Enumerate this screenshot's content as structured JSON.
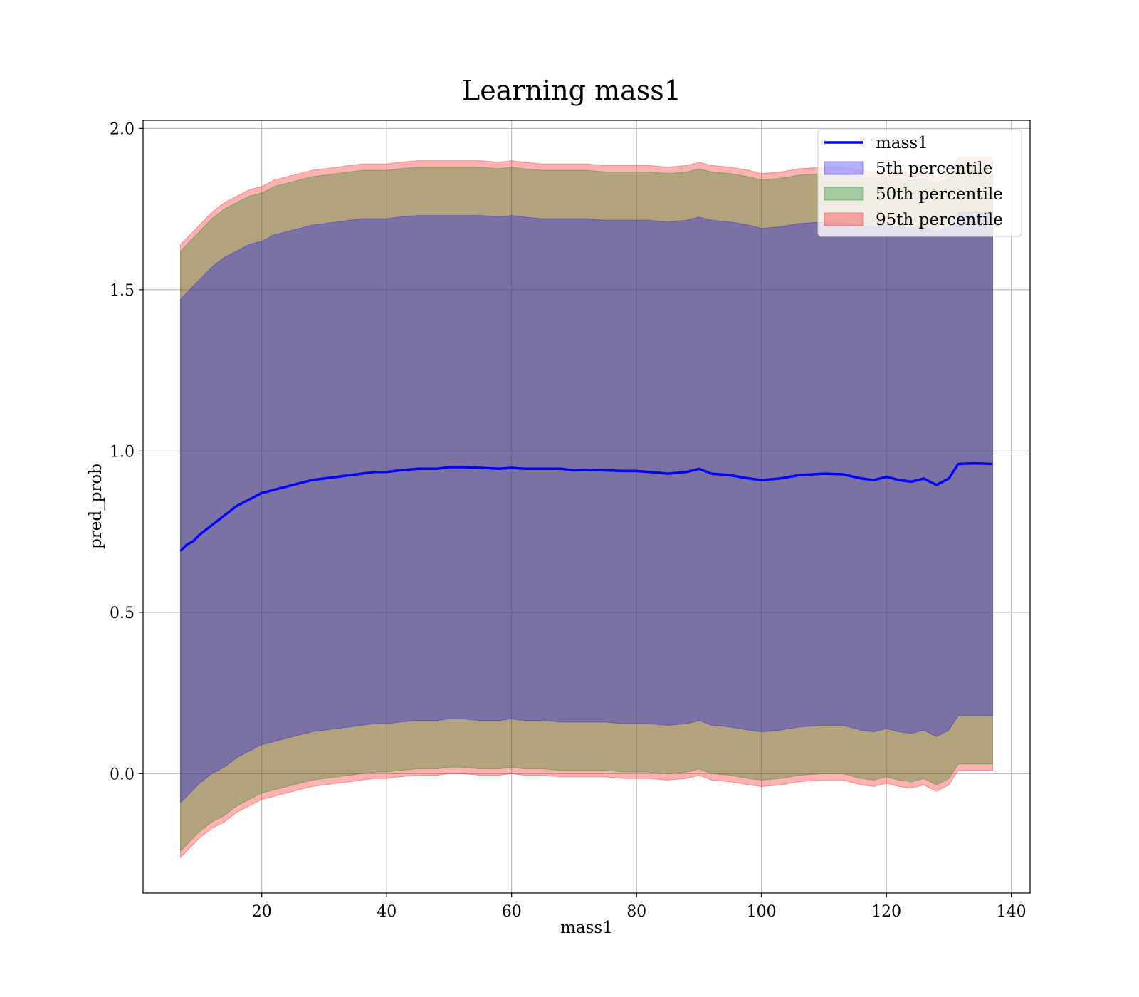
{
  "chart_data": {
    "type": "line",
    "title": "Learning mass1",
    "xlabel": "mass1",
    "ylabel": "pred_prob",
    "xlim": [
      1,
      143
    ],
    "ylim": [
      -0.37,
      2.025
    ],
    "xticks": [
      20,
      40,
      60,
      80,
      100,
      120,
      140
    ],
    "yticks": [
      0.0,
      0.5,
      1.0,
      1.5,
      2.0
    ],
    "grid": true,
    "legend_position": "top-right",
    "legend": [
      "mass1",
      "5th percentile",
      "50th percentile",
      "95th percentile"
    ],
    "colors": {
      "line": "#0000ff",
      "band_5": "#0000ff",
      "band_50": "#008000",
      "band_95": "#ff0000"
    },
    "x": [
      7,
      8,
      9,
      10,
      12,
      14,
      16,
      18,
      20,
      22,
      24,
      26,
      28,
      30,
      32,
      34,
      36,
      38,
      40,
      42,
      45,
      48,
      50,
      52,
      55,
      58,
      60,
      62,
      65,
      68,
      70,
      72,
      75,
      78,
      80,
      82,
      85,
      88,
      90,
      92,
      95,
      98,
      100,
      103,
      106,
      110,
      113,
      116,
      118,
      120,
      122,
      124,
      126,
      128,
      130,
      131.5,
      134,
      137
    ],
    "series": [
      {
        "name": "mass1",
        "kind": "line",
        "values": [
          0.69,
          0.71,
          0.72,
          0.74,
          0.77,
          0.8,
          0.83,
          0.85,
          0.87,
          0.88,
          0.89,
          0.9,
          0.91,
          0.915,
          0.92,
          0.925,
          0.93,
          0.935,
          0.935,
          0.94,
          0.945,
          0.945,
          0.95,
          0.95,
          0.948,
          0.945,
          0.948,
          0.945,
          0.945,
          0.945,
          0.94,
          0.942,
          0.94,
          0.938,
          0.938,
          0.935,
          0.93,
          0.935,
          0.945,
          0.93,
          0.925,
          0.915,
          0.91,
          0.915,
          0.925,
          0.93,
          0.928,
          0.915,
          0.91,
          0.92,
          0.91,
          0.905,
          0.915,
          0.895,
          0.915,
          0.96,
          0.962,
          0.96
        ]
      },
      {
        "name": "5th percentile",
        "kind": "band",
        "upper": [
          1.47,
          1.49,
          1.51,
          1.53,
          1.57,
          1.6,
          1.62,
          1.64,
          1.65,
          1.67,
          1.68,
          1.69,
          1.7,
          1.705,
          1.71,
          1.715,
          1.72,
          1.72,
          1.72,
          1.725,
          1.73,
          1.73,
          1.73,
          1.73,
          1.73,
          1.725,
          1.73,
          1.725,
          1.72,
          1.72,
          1.72,
          1.72,
          1.715,
          1.715,
          1.715,
          1.715,
          1.71,
          1.715,
          1.725,
          1.715,
          1.71,
          1.7,
          1.69,
          1.695,
          1.705,
          1.71,
          1.71,
          1.7,
          1.695,
          1.7,
          1.695,
          1.69,
          1.695,
          1.68,
          1.695,
          1.74,
          1.74,
          1.74
        ],
        "lower": [
          -0.09,
          -0.07,
          -0.05,
          -0.03,
          0.0,
          0.02,
          0.05,
          0.07,
          0.09,
          0.1,
          0.11,
          0.12,
          0.13,
          0.135,
          0.14,
          0.145,
          0.15,
          0.155,
          0.155,
          0.16,
          0.165,
          0.165,
          0.17,
          0.17,
          0.165,
          0.165,
          0.17,
          0.165,
          0.165,
          0.16,
          0.16,
          0.16,
          0.16,
          0.155,
          0.155,
          0.155,
          0.15,
          0.155,
          0.165,
          0.15,
          0.145,
          0.135,
          0.13,
          0.135,
          0.145,
          0.15,
          0.15,
          0.135,
          0.13,
          0.14,
          0.13,
          0.125,
          0.135,
          0.115,
          0.135,
          0.18,
          0.18,
          0.18
        ]
      },
      {
        "name": "50th percentile",
        "kind": "band",
        "upper": [
          1.62,
          1.64,
          1.66,
          1.68,
          1.72,
          1.75,
          1.77,
          1.79,
          1.8,
          1.82,
          1.83,
          1.84,
          1.85,
          1.855,
          1.86,
          1.865,
          1.87,
          1.87,
          1.87,
          1.875,
          1.88,
          1.88,
          1.88,
          1.88,
          1.88,
          1.875,
          1.88,
          1.875,
          1.87,
          1.87,
          1.87,
          1.87,
          1.865,
          1.865,
          1.865,
          1.865,
          1.86,
          1.865,
          1.875,
          1.865,
          1.86,
          1.85,
          1.84,
          1.845,
          1.855,
          1.86,
          1.86,
          1.85,
          1.845,
          1.85,
          1.845,
          1.84,
          1.845,
          1.83,
          1.845,
          1.89,
          1.89,
          1.89
        ],
        "lower": [
          -0.24,
          -0.22,
          -0.2,
          -0.18,
          -0.15,
          -0.13,
          -0.1,
          -0.08,
          -0.06,
          -0.05,
          -0.04,
          -0.03,
          -0.02,
          -0.015,
          -0.01,
          -0.005,
          0.0,
          0.005,
          0.005,
          0.01,
          0.015,
          0.015,
          0.02,
          0.02,
          0.015,
          0.015,
          0.02,
          0.015,
          0.015,
          0.01,
          0.01,
          0.01,
          0.01,
          0.005,
          0.005,
          0.005,
          0.0,
          0.005,
          0.015,
          0.0,
          -0.005,
          -0.015,
          -0.02,
          -0.015,
          -0.005,
          0.0,
          0.0,
          -0.015,
          -0.02,
          -0.01,
          -0.02,
          -0.025,
          -0.015,
          -0.035,
          -0.015,
          0.03,
          0.03,
          0.03
        ]
      },
      {
        "name": "95th percentile",
        "kind": "band",
        "upper": [
          1.64,
          1.66,
          1.68,
          1.7,
          1.74,
          1.77,
          1.79,
          1.81,
          1.82,
          1.84,
          1.85,
          1.86,
          1.87,
          1.875,
          1.88,
          1.885,
          1.89,
          1.89,
          1.89,
          1.895,
          1.9,
          1.9,
          1.9,
          1.9,
          1.9,
          1.895,
          1.9,
          1.895,
          1.89,
          1.89,
          1.89,
          1.89,
          1.885,
          1.885,
          1.885,
          1.885,
          1.88,
          1.885,
          1.895,
          1.885,
          1.88,
          1.87,
          1.86,
          1.865,
          1.875,
          1.88,
          1.88,
          1.87,
          1.865,
          1.87,
          1.865,
          1.86,
          1.865,
          1.85,
          1.865,
          1.91,
          1.91,
          1.91
        ],
        "lower": [
          -0.26,
          -0.24,
          -0.22,
          -0.2,
          -0.17,
          -0.15,
          -0.12,
          -0.1,
          -0.08,
          -0.07,
          -0.06,
          -0.05,
          -0.04,
          -0.035,
          -0.03,
          -0.025,
          -0.02,
          -0.015,
          -0.015,
          -0.01,
          -0.005,
          -0.005,
          0.0,
          0.0,
          -0.005,
          -0.005,
          0.0,
          -0.005,
          -0.005,
          -0.01,
          -0.01,
          -0.01,
          -0.01,
          -0.015,
          -0.015,
          -0.015,
          -0.02,
          -0.015,
          -0.005,
          -0.02,
          -0.025,
          -0.035,
          -0.04,
          -0.035,
          -0.025,
          -0.02,
          -0.02,
          -0.035,
          -0.04,
          -0.03,
          -0.04,
          -0.045,
          -0.035,
          -0.055,
          -0.035,
          0.01,
          0.01,
          0.01
        ]
      }
    ]
  }
}
